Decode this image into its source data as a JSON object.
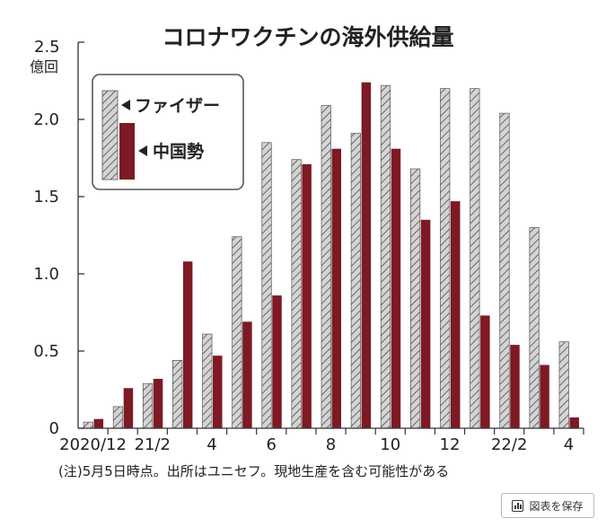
{
  "chart_data": {
    "type": "bar",
    "title": "コロナワクチンの海外供給量",
    "y_unit_value": "2.5",
    "y_unit_label": "億回",
    "ylim": [
      0,
      2.5
    ],
    "y_ticks": [
      "0",
      "0.5",
      "1.0",
      "1.5",
      "2.0"
    ],
    "x_tick_labels": [
      "2020/12",
      "21/2",
      "4",
      "6",
      "8",
      "10",
      "12",
      "22/2",
      "4"
    ],
    "categories": [
      "2020/12",
      "2021/1",
      "2021/2",
      "2021/3",
      "2021/4",
      "2021/5",
      "2021/6",
      "2021/7",
      "2021/8",
      "2021/9",
      "2021/10",
      "2021/11",
      "2021/12",
      "2022/1",
      "2022/2",
      "2022/3",
      "2022/4"
    ],
    "series": [
      {
        "name": "ファイザー",
        "color": "#c9c9c9",
        "pattern": "hatched",
        "values": [
          0.04,
          0.14,
          0.29,
          0.44,
          0.61,
          1.24,
          1.85,
          1.74,
          2.09,
          1.91,
          2.22,
          1.68,
          2.2,
          2.2,
          2.04,
          1.3,
          0.56
        ]
      },
      {
        "name": "中国勢",
        "color": "#7d1a24",
        "pattern": "solid",
        "values": [
          0.06,
          0.26,
          0.32,
          1.08,
          0.47,
          0.69,
          0.86,
          1.71,
          1.81,
          2.24,
          1.81,
          1.35,
          1.47,
          0.73,
          0.54,
          0.41,
          0.07
        ]
      }
    ],
    "note": "(注)5月5日時点。出所はユニセフ。現地生産を含む可能性がある"
  },
  "ui": {
    "save_button_label": "図表を保存",
    "chart_icon": "bar-chart-icon"
  }
}
